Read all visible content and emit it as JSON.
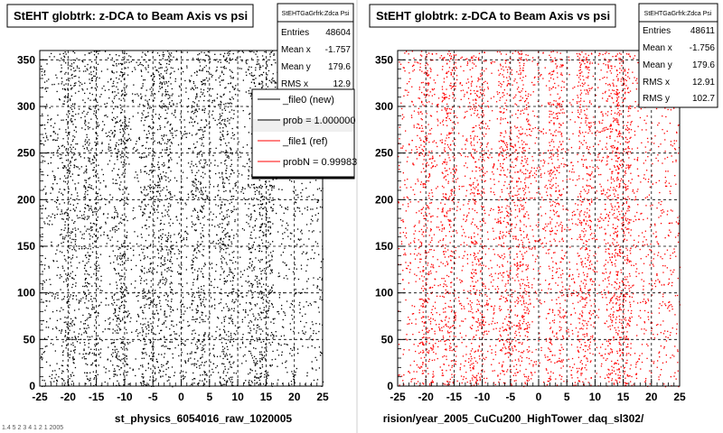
{
  "colors": {
    "new": "#000000",
    "ref": "#ff0000",
    "grid": "#000000"
  },
  "footer": {
    "left": "st_physics_6054016_raw_1020005",
    "right": "rision/year_2005_CuCu200_HighTower_daq_sl302/",
    "corner": "1.4 5 2 3 4 1 2 1 2005"
  },
  "left_panel": {
    "title": "StEHT globtrk: z-DCA to Beam Axis vs psi",
    "stats": {
      "name": "StEHTGaGrfrk:Zdca Psi",
      "rows": [
        {
          "label": "Entries",
          "value": "48604"
        },
        {
          "label": "Mean x",
          "value": "-1.757"
        },
        {
          "label": "Mean y",
          "value": "179.6"
        },
        {
          "label": "RMS x",
          "value": "12.9"
        }
      ]
    },
    "legend": [
      {
        "label": "_file0 (new)",
        "color": "#000000"
      },
      {
        "label": "prob = 1.000000",
        "color": "#000000"
      },
      {
        "label": "_file1 (ref)",
        "color": "#ff0000"
      },
      {
        "label": "probN = 0.99983",
        "color": "#ff0000"
      }
    ]
  },
  "right_panel": {
    "title": "StEHT globtrk: z-DCA to Beam Axis vs psi",
    "stats": {
      "name": "StEHTGaGrfrk:Zdca Psi",
      "rows": [
        {
          "label": "Entries",
          "value": "48611"
        },
        {
          "label": "Mean x",
          "value": "-1.756"
        },
        {
          "label": "Mean y",
          "value": "179.6"
        },
        {
          "label": "RMS x",
          "value": "12.91"
        },
        {
          "label": "RMS y",
          "value": "102.7"
        }
      ]
    }
  },
  "chart_data": [
    {
      "type": "scatter",
      "title": "StEHT globtrk: z-DCA to Beam Axis vs psi",
      "series": [
        {
          "name": "_file0 (new)",
          "color": "#000000"
        }
      ],
      "xlim": [
        -25,
        25
      ],
      "ylim": [
        0,
        360
      ],
      "xticks": [
        -25,
        -20,
        -15,
        -10,
        -5,
        0,
        5,
        10,
        15,
        20,
        25
      ],
      "yticks": [
        0,
        50,
        100,
        150,
        200,
        250,
        300,
        350
      ],
      "grid": true,
      "entries": 48604,
      "mean_x": -1.757,
      "mean_y": 179.6,
      "rms_x": 12.9,
      "dense_bands_x": [
        -20,
        -16,
        -11,
        -6,
        -3,
        3,
        8,
        13,
        15
      ]
    },
    {
      "type": "scatter",
      "title": "StEHT globtrk: z-DCA to Beam Axis vs psi",
      "series": [
        {
          "name": "_file1 (ref)",
          "color": "#ff0000"
        }
      ],
      "xlim": [
        -25,
        25
      ],
      "ylim": [
        0,
        360
      ],
      "xticks": [
        -25,
        -20,
        -15,
        -10,
        -5,
        0,
        5,
        10,
        15,
        20,
        25
      ],
      "yticks": [
        0,
        50,
        100,
        150,
        200,
        250,
        300,
        350
      ],
      "grid": true,
      "entries": 48611,
      "mean_x": -1.756,
      "mean_y": 179.6,
      "rms_x": 12.91,
      "rms_y": 102.7,
      "dense_bands_x": [
        -20,
        -16,
        -11,
        -6,
        -3,
        3,
        8,
        13,
        15
      ]
    }
  ]
}
